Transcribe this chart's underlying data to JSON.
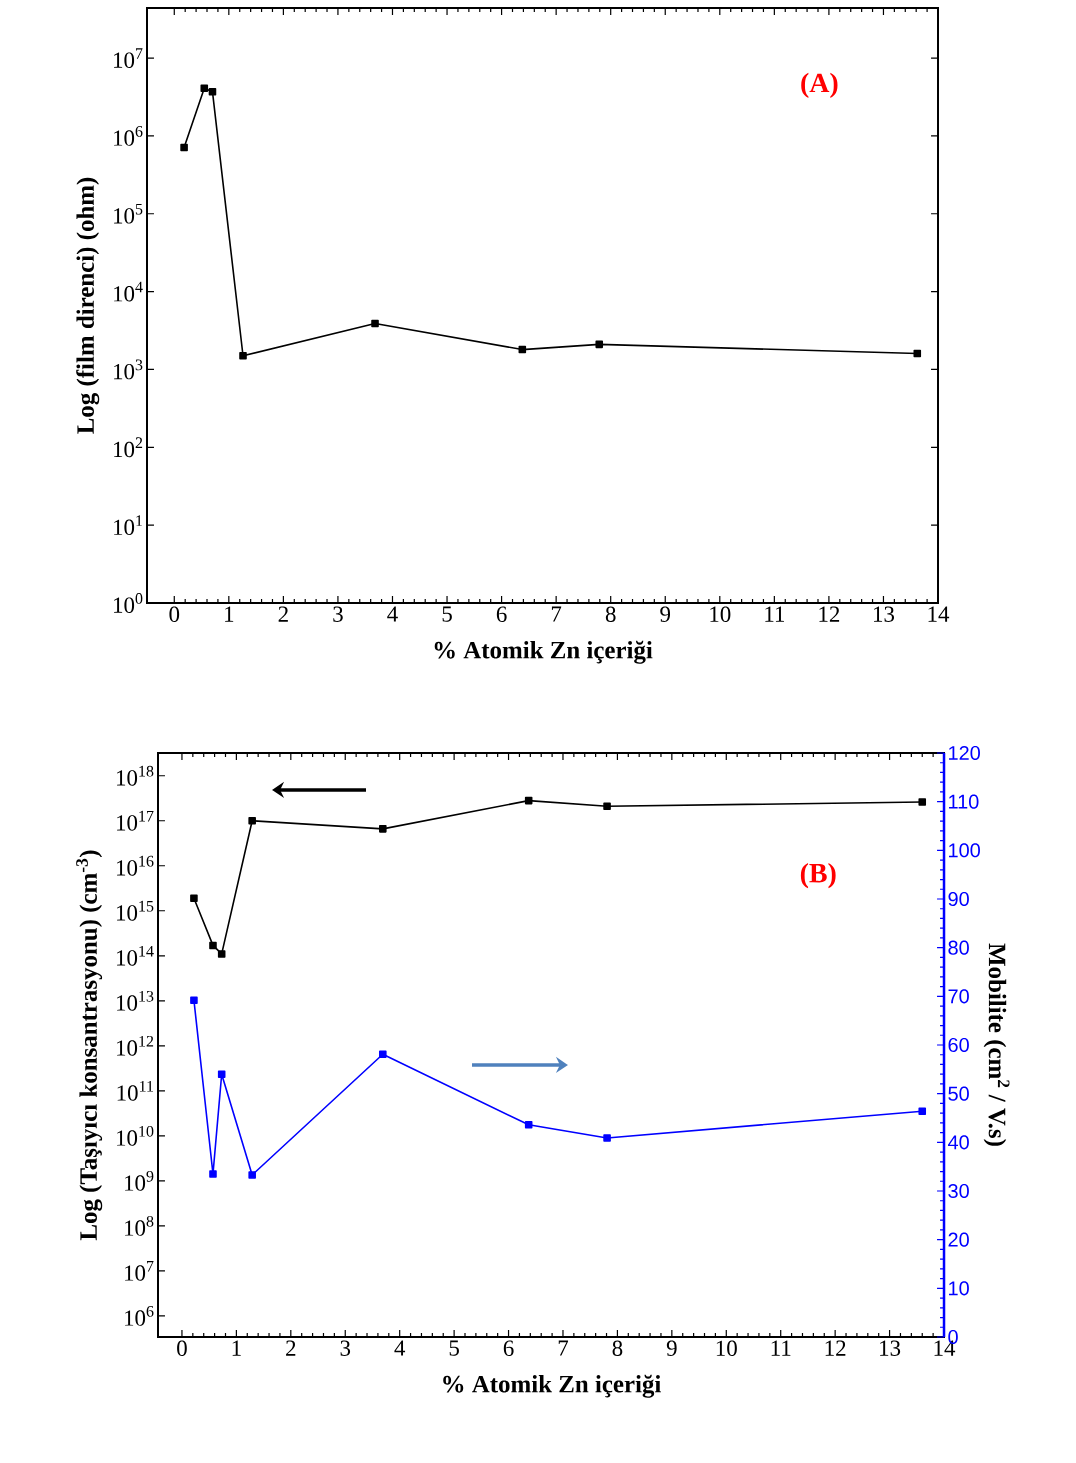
{
  "chart_data": [
    {
      "type": "line",
      "xlabel": "% Atomik Zn içeriği",
      "ylabel": "Log (film direnci) (ohm)",
      "annotations": [
        "(A)"
      ],
      "log": "y",
      "marker": "square",
      "line_style": "solid",
      "grid": false,
      "x": [
        0.18,
        0.55,
        0.7,
        1.26,
        3.68,
        6.38,
        7.79,
        13.62
      ],
      "series": [
        {
          "color": "#000000",
          "values": [
            710000,
            4100000,
            3700000,
            1500,
            3900,
            1800,
            2100,
            1600
          ]
        }
      ],
      "xlim": [
        -0.5,
        14
      ],
      "xticks": [
        0,
        1,
        2,
        3,
        4,
        5,
        6,
        7,
        8,
        9,
        10,
        11,
        12,
        13,
        14
      ],
      "ylim": [
        1,
        44000000
      ],
      "yticks": [
        {
          "value": 1,
          "label": "10$^{0}$"
        },
        {
          "value": 10,
          "label": "10$^{1}$"
        },
        {
          "value": 100,
          "label": "10$^{2}$"
        },
        {
          "value": 1000,
          "label": "10$^{3}$"
        },
        {
          "value": 10000,
          "label": "10$^{4}$"
        },
        {
          "value": 100000,
          "label": "10$^{5}$"
        },
        {
          "value": 1000000,
          "label": "10$^{6}$"
        },
        {
          "value": 10000000,
          "label": "10$^{7}$"
        }
      ]
    },
    {
      "type": "line",
      "xlabel": "% Atomik Zn içeriği",
      "ylabel": "Log (Taşıyıcı konsantrasyonu) (cm$^{-3}$)",
      "y2label": "Mobilite (cm$^{2}$ / V.s)",
      "annotations": [
        "(B)"
      ],
      "log": "y",
      "marker": "square",
      "line_style": "solid",
      "grid": false,
      "x": [
        0.22,
        0.57,
        0.73,
        1.29,
        3.69,
        6.37,
        7.81,
        13.6
      ],
      "series": [
        {
          "color": "#000000",
          "values": [
            1900000000000000.0,
            170000000000000.0,
            110000000000000.0,
            1e+17,
            6.6e+16,
            2.8e+17,
            2.1e+17,
            2.6e+17
          ]
        },
        {
          "color": "#0000ff",
          "axis": "y2",
          "values": [
            69.2,
            33.5,
            54.0,
            33.3,
            58.1,
            43.6,
            40.9,
            46.4
          ]
        }
      ],
      "xlim": [
        -0.44,
        14
      ],
      "xticks": [
        0,
        1,
        2,
        3,
        4,
        5,
        6,
        7,
        8,
        9,
        10,
        11,
        12,
        13,
        14
      ],
      "ylim": [
        340000.0,
        3.2e+18
      ],
      "yticks": [
        {
          "value": 1000000.0,
          "label": "10$^{6}$"
        },
        {
          "value": 10000000.0,
          "label": "10$^{7}$"
        },
        {
          "value": 100000000.0,
          "label": "10$^{8}$"
        },
        {
          "value": 1000000000.0,
          "label": "10$^{9}$"
        },
        {
          "value": 10000000000.0,
          "label": "10$^{10}$"
        },
        {
          "value": 100000000000.0,
          "label": "10$^{11}$"
        },
        {
          "value": 1000000000000.0,
          "label": "10$^{12}$"
        },
        {
          "value": 10000000000000.0,
          "label": "10$^{13}$"
        },
        {
          "value": 100000000000000.0,
          "label": "10$^{14}$"
        },
        {
          "value": 1000000000000000.0,
          "label": "10$^{15}$"
        },
        {
          "value": 1e+16,
          "label": "10$^{16}$"
        },
        {
          "value": 1e+17,
          "label": "10$^{17}$"
        },
        {
          "value": 1e+18,
          "label": "10$^{18}$"
        }
      ],
      "y2lim": [
        0,
        120
      ],
      "y2ticks": [
        0,
        10,
        20,
        30,
        40,
        50,
        60,
        70,
        80,
        90,
        100,
        110,
        120
      ]
    }
  ]
}
